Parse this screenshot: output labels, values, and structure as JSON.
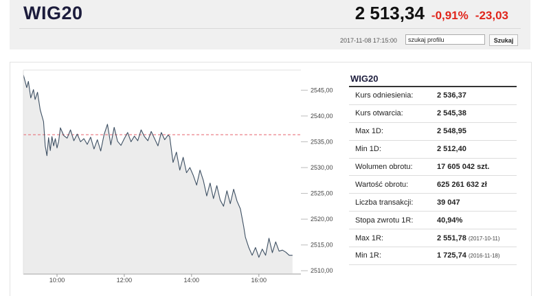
{
  "header": {
    "title": "WIG20",
    "price": "2 513,34",
    "change_pct": "-0,91%",
    "change_abs": "-23,03",
    "timestamp": "2017-11-08 17:15:00",
    "search_value": "szukaj profilu",
    "search_button": "Szukaj",
    "change_color": "#e0251b"
  },
  "stats": {
    "title": "WIG20",
    "rows": [
      {
        "label": "Kurs odniesienia:",
        "value": "2 536,37",
        "note": ""
      },
      {
        "label": "Kurs otwarcia:",
        "value": "2 545,38",
        "note": ""
      },
      {
        "label": "Max 1D:",
        "value": "2 548,95",
        "note": ""
      },
      {
        "label": "Min 1D:",
        "value": "2 512,40",
        "note": ""
      },
      {
        "label": "Wolumen obrotu:",
        "value": "17 605 042 szt.",
        "note": ""
      },
      {
        "label": "Wartość obrotu:",
        "value": "625 261 632 zł",
        "note": ""
      },
      {
        "label": "Liczba transakcji:",
        "value": "39 047",
        "note": ""
      },
      {
        "label": "Stopa zwrotu 1R:",
        "value": "40,94%",
        "note": ""
      },
      {
        "label": "Max 1R:",
        "value": "2 551,78",
        "note": "(2017-10-11)"
      },
      {
        "label": "Min 1R:",
        "value": "1 725,74",
        "note": "(2016-11-18)"
      }
    ]
  },
  "chart_data": {
    "type": "area",
    "title": "",
    "xlabel": "",
    "ylabel": "",
    "x_ticks": [
      "10:00",
      "12:00",
      "14:00",
      "16:00"
    ],
    "y_ticks": [
      "2510,00",
      "2515,00",
      "2520,00",
      "2525,00",
      "2530,00",
      "2535,00",
      "2540,00",
      "2545,00"
    ],
    "ylim": [
      2509.5,
      2548.9
    ],
    "xlim_hours": [
      9,
      17.25
    ],
    "reference_line": 2536.37,
    "reference_color": "#e8616b",
    "line_color": "#3d4f62",
    "fill_color": "#ececec",
    "x_hours": [
      9.0,
      9.1,
      9.15,
      9.22,
      9.3,
      9.35,
      9.42,
      9.5,
      9.6,
      9.65,
      9.7,
      9.75,
      9.8,
      9.85,
      9.9,
      9.95,
      10.0,
      10.05,
      10.1,
      10.2,
      10.3,
      10.4,
      10.5,
      10.6,
      10.7,
      10.8,
      10.9,
      11.0,
      11.1,
      11.2,
      11.3,
      11.4,
      11.5,
      11.6,
      11.7,
      11.8,
      11.9,
      12.0,
      12.1,
      12.2,
      12.3,
      12.4,
      12.5,
      12.6,
      12.7,
      12.8,
      12.9,
      13.0,
      13.1,
      13.2,
      13.3,
      13.35,
      13.45,
      13.55,
      13.65,
      13.75,
      13.85,
      13.95,
      14.05,
      14.15,
      14.25,
      14.35,
      14.45,
      14.55,
      14.65,
      14.75,
      14.85,
      14.95,
      15.05,
      15.15,
      15.25,
      15.35,
      15.45,
      15.55,
      15.6,
      15.7,
      15.8,
      15.9,
      16.0,
      16.1,
      16.2,
      16.3,
      16.4,
      16.5,
      16.6,
      16.7,
      16.8,
      16.9,
      17.0
    ],
    "values": [
      2548.0,
      2545.5,
      2546.7,
      2543.5,
      2545.1,
      2543.2,
      2544.6,
      2541.2,
      2538.9,
      2534.2,
      2532.3,
      2535.8,
      2533.3,
      2536.0,
      2534.2,
      2535.6,
      2533.8,
      2535.1,
      2537.7,
      2536.2,
      2535.7,
      2537.3,
      2535.2,
      2536.5,
      2535.0,
      2535.6,
      2534.5,
      2535.9,
      2533.6,
      2535.4,
      2533.2,
      2536.4,
      2538.4,
      2534.4,
      2537.8,
      2535.1,
      2534.3,
      2535.6,
      2536.8,
      2535.0,
      2536.1,
      2535.2,
      2537.3,
      2536.0,
      2535.2,
      2537.0,
      2535.6,
      2534.2,
      2536.8,
      2535.4,
      2536.3,
      2536.0,
      2531.0,
      2533.0,
      2529.5,
      2532.0,
      2529.0,
      2530.0,
      2528.5,
      2526.6,
      2529.5,
      2527.5,
      2524.5,
      2527.0,
      2524.0,
      2526.5,
      2523.7,
      2522.5,
      2525.5,
      2523.0,
      2525.8,
      2523.5,
      2522.0,
      2518.5,
      2516.5,
      2514.5,
      2513.0,
      2514.5,
      2512.6,
      2514.2,
      2513.0,
      2516.3,
      2513.5,
      2515.6,
      2513.8,
      2514.0,
      2513.6,
      2513.0,
      2513.0
    ]
  }
}
